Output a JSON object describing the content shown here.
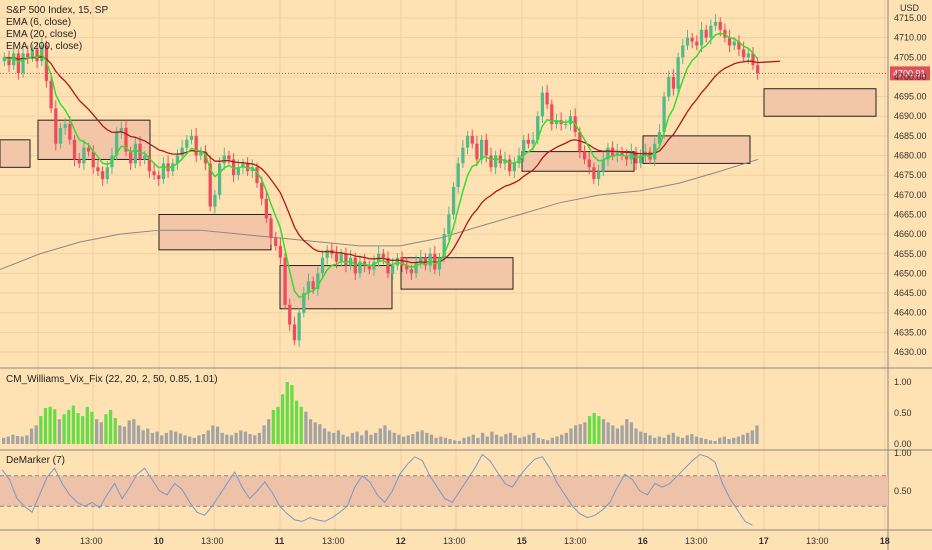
{
  "chart": {
    "title": "S&P 500 Index, 15, SP",
    "currency": "USD",
    "indicators": [
      "EMA (6, close)",
      "EMA (20, close)",
      "EMA (200, close)"
    ],
    "last_price": "4700.91",
    "price_axis": [
      "4715.00",
      "4710.00",
      "4705.00",
      "4700.00",
      "4695.00",
      "4690.00",
      "4685.00",
      "4680.00",
      "4675.00",
      "4670.00",
      "4665.00",
      "4660.00",
      "4655.00",
      "4650.00",
      "4645.00",
      "4640.00",
      "4635.00",
      "4630.00"
    ],
    "vix_title": "CM_Williams_Vix_Fix (22, 20, 2, 50, 0.85, 1.01)",
    "vix_axis": [
      "1.00",
      "0.50",
      "0.00"
    ],
    "dem_title": "DeMarker (7)",
    "dem_axis": [
      "1.00",
      "0.50"
    ],
    "time_axis": [
      "9",
      "13:00",
      "10",
      "13:00",
      "11",
      "13:00",
      "12",
      "13:00",
      "15",
      "13:00",
      "16",
      "13:00",
      "17",
      "13:00",
      "18"
    ],
    "colors": {
      "up": "#53b987",
      "down": "#eb4d5c",
      "ema6": "#33dd33",
      "ema20": "#aa1a1a",
      "ema200": "#888888",
      "zone": "#f4c6a8",
      "vix_high": "#66dd44",
      "vix_low": "#a3a3a3",
      "dem": "#7799cc"
    }
  },
  "chart_data": {
    "type": "candlestick",
    "symbol": "S&P 500 Index",
    "interval": "15",
    "ylim": [
      4628,
      4718
    ],
    "last": 4700.91,
    "supply_demand_zones": [
      {
        "x0": 0,
        "x1": 30,
        "low": 4677,
        "high": 4684
      },
      {
        "x0": 38,
        "x1": 150,
        "low": 4679,
        "high": 4689
      },
      {
        "x0": 159,
        "x1": 271,
        "low": 4656,
        "high": 4665
      },
      {
        "x0": 280,
        "x1": 392,
        "low": 4641,
        "high": 4652
      },
      {
        "x0": 401,
        "x1": 513,
        "low": 4646,
        "high": 4654
      },
      {
        "x0": 522,
        "x1": 634,
        "low": 4676,
        "high": 4681
      },
      {
        "x0": 643,
        "x1": 750,
        "low": 4678,
        "high": 4685
      },
      {
        "x0": 764,
        "x1": 876,
        "low": 4690,
        "high": 4697
      }
    ],
    "close_series": [
      4705,
      4703,
      4706,
      4701,
      4706,
      4705,
      4707,
      4704,
      4708,
      4699,
      4692,
      4683,
      4687,
      4688,
      4684,
      4679,
      4678,
      4682,
      4681,
      4677,
      4676,
      4674,
      4677,
      4680,
      4686,
      4687,
      4681,
      4678,
      4683,
      4679,
      4680,
      4676,
      4675,
      4674,
      4678,
      4676,
      4678,
      4680,
      4682,
      4684,
      4685,
      4680,
      4681,
      4678,
      4667,
      4670,
      4678,
      4680,
      4679,
      4675,
      4677,
      4678,
      4676,
      4677,
      4673,
      4669,
      4664,
      4659,
      4657,
      4654,
      4642,
      4637,
      4633,
      4640,
      4645,
      4648,
      4646,
      4650,
      4654,
      4656,
      4655,
      4653,
      4655,
      4652,
      4654,
      4650,
      4653,
      4652,
      4651,
      4653,
      4655,
      4654,
      4650,
      4652,
      4654,
      4652,
      4651,
      4650,
      4653,
      4654,
      4652,
      4655,
      4651,
      4654,
      4660,
      4665,
      4672,
      4678,
      4682,
      4685,
      4683,
      4679,
      4684,
      4680,
      4677,
      4680,
      4678,
      4679,
      4676,
      4678,
      4680,
      4684,
      4683,
      4684,
      4690,
      4696,
      4693,
      4688,
      4689,
      4688,
      4688,
      4690,
      4686,
      4681,
      4679,
      4677,
      4674,
      4676,
      4679,
      4682,
      4680,
      4681,
      4680,
      4679,
      4681,
      4678,
      4680,
      4681,
      4679,
      4683,
      4686,
      4695,
      4700,
      4697,
      4705,
      4708,
      4710,
      4709,
      4708,
      4712,
      4710,
      4713,
      4714,
      4712,
      4710,
      4708,
      4709,
      4707,
      4705,
      4706,
      4703,
      4701
    ],
    "ema200_series": [
      [
        0,
        4651
      ],
      [
        40,
        4655
      ],
      [
        80,
        4658
      ],
      [
        120,
        4660
      ],
      [
        160,
        4661
      ],
      [
        200,
        4661
      ],
      [
        240,
        4660
      ],
      [
        280,
        4659
      ],
      [
        320,
        4658
      ],
      [
        360,
        4657
      ],
      [
        400,
        4657
      ],
      [
        440,
        4659
      ],
      [
        480,
        4662
      ],
      [
        520,
        4665
      ],
      [
        560,
        4668
      ],
      [
        600,
        4670
      ],
      [
        640,
        4671
      ],
      [
        680,
        4673
      ],
      [
        720,
        4676
      ],
      [
        758,
        4679
      ]
    ],
    "vix_bars": [
      0.1,
      0.12,
      0.15,
      0.13,
      0.12,
      0.14,
      0.25,
      0.3,
      0.45,
      0.58,
      0.6,
      0.56,
      0.4,
      0.48,
      0.55,
      0.62,
      0.5,
      0.45,
      0.6,
      0.52,
      0.4,
      0.35,
      0.48,
      0.55,
      0.42,
      0.3,
      0.28,
      0.38,
      0.4,
      0.3,
      0.22,
      0.25,
      0.18,
      0.2,
      0.14,
      0.18,
      0.22,
      0.2,
      0.17,
      0.14,
      0.12,
      0.1,
      0.14,
      0.16,
      0.22,
      0.3,
      0.28,
      0.18,
      0.15,
      0.14,
      0.18,
      0.22,
      0.2,
      0.16,
      0.14,
      0.18,
      0.3,
      0.4,
      0.55,
      0.6,
      0.8,
      1.0,
      0.95,
      0.7,
      0.6,
      0.52,
      0.4,
      0.35,
      0.32,
      0.25,
      0.2,
      0.18,
      0.22,
      0.15,
      0.12,
      0.18,
      0.2,
      0.14,
      0.22,
      0.15,
      0.18,
      0.25,
      0.3,
      0.22,
      0.18,
      0.15,
      0.12,
      0.14,
      0.16,
      0.2,
      0.22,
      0.18,
      0.15,
      0.1,
      0.12,
      0.1,
      0.08,
      0.06,
      0.05,
      0.1,
      0.12,
      0.15,
      0.1,
      0.18,
      0.12,
      0.2,
      0.15,
      0.12,
      0.16,
      0.18,
      0.14,
      0.1,
      0.12,
      0.15,
      0.18,
      0.1,
      0.08,
      0.06,
      0.1,
      0.12,
      0.15,
      0.18,
      0.25,
      0.3,
      0.32,
      0.35,
      0.45,
      0.5,
      0.45,
      0.4,
      0.35,
      0.3,
      0.25,
      0.3,
      0.4,
      0.35,
      0.25,
      0.2,
      0.18,
      0.14,
      0.1,
      0.12,
      0.1,
      0.15,
      0.18,
      0.12,
      0.1,
      0.14,
      0.16,
      0.12,
      0.1,
      0.08,
      0.06,
      0.05,
      0.1,
      0.12,
      0.08,
      0.1,
      0.12,
      0.15,
      0.18,
      0.22,
      0.3
    ],
    "demarker_series": [
      0.78,
      0.65,
      0.4,
      0.3,
      0.22,
      0.45,
      0.68,
      0.8,
      0.6,
      0.45,
      0.35,
      0.3,
      0.35,
      0.28,
      0.45,
      0.6,
      0.4,
      0.55,
      0.72,
      0.8,
      0.65,
      0.5,
      0.45,
      0.6,
      0.52,
      0.35,
      0.22,
      0.18,
      0.3,
      0.45,
      0.6,
      0.75,
      0.55,
      0.4,
      0.5,
      0.62,
      0.48,
      0.3,
      0.2,
      0.12,
      0.1,
      0.15,
      0.12,
      0.1,
      0.15,
      0.22,
      0.3,
      0.55,
      0.7,
      0.62,
      0.45,
      0.35,
      0.5,
      0.72,
      0.85,
      0.95,
      0.9,
      0.7,
      0.55,
      0.4,
      0.35,
      0.5,
      0.65,
      0.8,
      0.98,
      0.9,
      0.75,
      0.6,
      0.55,
      0.7,
      0.82,
      0.92,
      0.95,
      0.8,
      0.6,
      0.45,
      0.3,
      0.2,
      0.15,
      0.18,
      0.25,
      0.35,
      0.55,
      0.72,
      0.65,
      0.5,
      0.45,
      0.6,
      0.55,
      0.6,
      0.7,
      0.8,
      0.9,
      0.98,
      0.95,
      0.88,
      0.6,
      0.4,
      0.25,
      0.1,
      0.05
    ],
    "demarker_ylim": [
      0,
      1
    ],
    "demarker_levels": [
      0.3,
      0.7
    ]
  }
}
